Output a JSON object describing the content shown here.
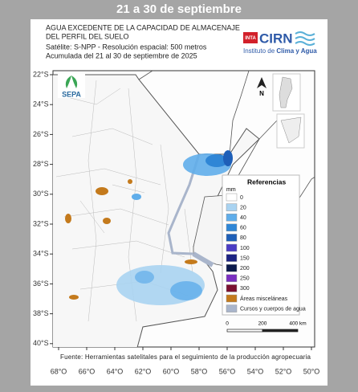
{
  "header": {
    "title": "21 a 30 de septiembre"
  },
  "map": {
    "title": [
      "AGUA EXCEDENTE DE LA CAPACIDAD DE ALMACENAJE",
      "DEL PERFIL DEL SUELO"
    ],
    "subtitle": [
      "Satélite: S-NPP - Resolución espacial: 500 metros",
      "Acumulada del 21 al 30 de septiembre de 2025"
    ],
    "lat_labels": [
      "22°S",
      "24°S",
      "26°S",
      "28°S",
      "30°S",
      "32°S",
      "34°S",
      "36°S",
      "38°S",
      "40°S"
    ],
    "lon_labels": [
      "68°O",
      "66°O",
      "64°O",
      "62°O",
      "60°O",
      "58°O",
      "56°O",
      "54°O",
      "52°O",
      "50°O"
    ],
    "scale": [
      "0",
      "200",
      "400 km"
    ],
    "source": "Fuente: Herramientas satelitales para el seguimiento de la producción agropecuaria"
  },
  "logos": {
    "inta": "INTA",
    "cirn": "CIRN",
    "institute": [
      "Instituto de ",
      "Clima y Agua"
    ],
    "sepa": "SEPA",
    "north": "N"
  },
  "legend": {
    "title": "Referencias",
    "unit": "mm",
    "items": [
      {
        "label": "0",
        "color": "#ffffff"
      },
      {
        "label": "20",
        "color": "#a9d3f1"
      },
      {
        "label": "40",
        "color": "#5fadea"
      },
      {
        "label": "60",
        "color": "#2f86d6"
      },
      {
        "label": "80",
        "color": "#1e5fb8"
      },
      {
        "label": "100",
        "color": "#4a3cc4"
      },
      {
        "label": "150",
        "color": "#1c2383"
      },
      {
        "label": "200",
        "color": "#0c1a4c"
      },
      {
        "label": "250",
        "color": "#7a2fc0"
      },
      {
        "label": "300",
        "color": "#7b1131"
      },
      {
        "label": "Áreas misceláneas",
        "color": "#c47a1c"
      },
      {
        "label": "Cursos y cuerpos de agua",
        "color": "#a9b5cb"
      }
    ]
  }
}
